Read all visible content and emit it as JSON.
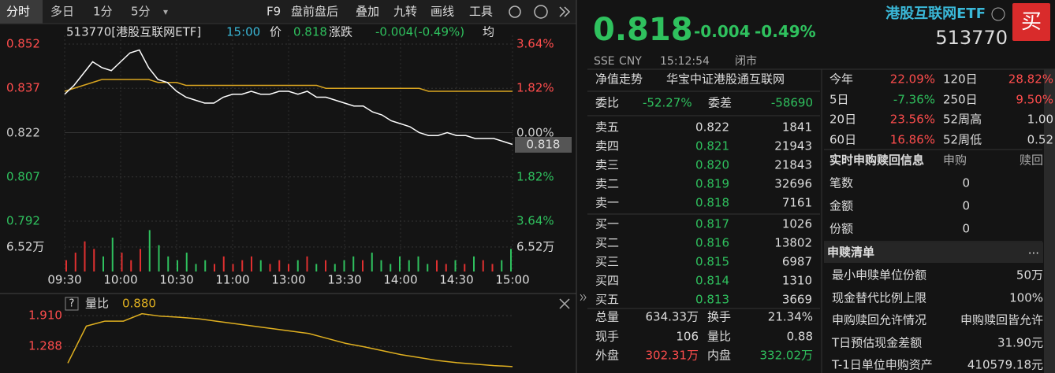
{
  "toolbar": {
    "tabs": [
      "分时",
      "多日",
      "1分",
      "5分"
    ],
    "dropdown": "▾",
    "items": [
      "F9",
      "盘前盘后",
      "叠加",
      "九转",
      "画线",
      "工具"
    ]
  },
  "chart_header": {
    "code_name": "513770[港股互联网ETF]",
    "time": "15:00",
    "price_label": "价",
    "price": "0.818",
    "change_label": "涨跌",
    "change": "-0.004(-0.49%)",
    "avg_label": "均"
  },
  "price_chart": {
    "ylim": [
      0.792,
      0.852
    ],
    "yticks": [
      0.852,
      0.837,
      0.822,
      0.807,
      0.792
    ],
    "pct_ticks": [
      "3.64%",
      "1.82%",
      "0.00%",
      "1.82%",
      "3.64%"
    ],
    "tick_colors": [
      "#ff4d4d",
      "#ff4d4d",
      "#cccccc",
      "#2fc15e",
      "#2fc15e"
    ],
    "last_price": "0.818",
    "time_ticks": [
      "09:30",
      "10:00",
      "10:30",
      "11:00",
      "13:00",
      "13:30",
      "14:00",
      "14:30",
      "15:00"
    ],
    "price_color": "#ffffff",
    "avg_color": "#d9a520",
    "price": [
      0.835,
      0.838,
      0.842,
      0.846,
      0.844,
      0.843,
      0.846,
      0.849,
      0.85,
      0.844,
      0.84,
      0.839,
      0.836,
      0.834,
      0.833,
      0.832,
      0.832,
      0.834,
      0.835,
      0.835,
      0.836,
      0.835,
      0.835,
      0.836,
      0.836,
      0.835,
      0.836,
      0.834,
      0.834,
      0.833,
      0.832,
      0.831,
      0.831,
      0.829,
      0.828,
      0.826,
      0.825,
      0.824,
      0.822,
      0.821,
      0.821,
      0.822,
      0.821,
      0.821,
      0.82,
      0.82,
      0.82,
      0.819,
      0.818
    ],
    "avg": [
      0.836,
      0.837,
      0.838,
      0.839,
      0.84,
      0.84,
      0.84,
      0.84,
      0.84,
      0.84,
      0.839,
      0.839,
      0.839,
      0.838,
      0.838,
      0.838,
      0.838,
      0.838,
      0.838,
      0.838,
      0.838,
      0.838,
      0.838,
      0.838,
      0.838,
      0.838,
      0.838,
      0.838,
      0.837,
      0.837,
      0.837,
      0.837,
      0.837,
      0.837,
      0.837,
      0.837,
      0.837,
      0.837,
      0.837,
      0.836,
      0.836,
      0.836,
      0.836,
      0.836,
      0.836,
      0.836,
      0.836,
      0.836,
      0.836
    ]
  },
  "volume_chart": {
    "ylim": [
      0,
      11.5
    ],
    "tick": {
      "value": 6.52,
      "label": "6.52万"
    },
    "right_tick": "6.52万",
    "up_color": "#e03030",
    "down_color": "#2fc15e",
    "values": [
      3,
      5,
      8,
      6,
      4,
      9,
      5,
      3,
      6,
      11,
      7,
      4,
      3,
      5,
      2,
      3,
      2,
      4,
      2,
      3,
      4,
      3,
      2,
      3,
      2,
      3,
      4,
      2,
      3,
      2,
      3,
      4,
      3,
      5,
      3,
      2,
      4,
      3,
      4,
      2,
      3,
      2,
      3,
      2,
      4,
      3,
      2,
      3,
      6
    ]
  },
  "ratio_chart": {
    "help": "?",
    "title": "量比",
    "value": "0.880",
    "color": "#e0b020",
    "ylim": [
      0.75,
      2.12
    ],
    "yticks": [
      {
        "value": 1.91,
        "label": "1.910"
      },
      1.288
    ],
    "values": [
      0.95,
      1.7,
      1.8,
      1.8,
      1.95,
      1.9,
      1.88,
      1.85,
      1.8,
      1.75,
      1.7,
      1.65,
      1.6,
      1.55,
      1.45,
      1.35,
      1.28,
      1.2,
      1.12,
      1.06,
      1.0,
      0.96,
      0.93,
      0.9,
      0.88
    ]
  },
  "quote": {
    "price": "0.818",
    "change": "-0.004",
    "change_pct": "-0.49%",
    "name": "港股互联网ETF",
    "code": "513770",
    "buy_button": "买",
    "exchange": "SSE",
    "currency": "CNY",
    "time": "15:12:54",
    "status": "闭市"
  },
  "tabs": [
    "净值走势",
    "华宝中证港股通互联网"
  ],
  "order_ratio": [
    "委比",
    "-52.27%",
    "委差",
    "-58690"
  ],
  "asks": {
    "rows": [
      [
        "卖五",
        "0.822",
        "1841"
      ],
      [
        "卖四",
        "0.821",
        "21943"
      ],
      [
        "卖三",
        "0.820",
        "21843"
      ],
      [
        "卖二",
        "0.819",
        "32696"
      ],
      [
        "卖一",
        "0.818",
        "7161"
      ]
    ],
    "colors": [
      "#dddddd",
      "#2fc15e",
      "#2fc15e",
      "#2fc15e",
      "#2fc15e"
    ]
  },
  "bids": {
    "rows": [
      [
        "买一",
        "0.817",
        "1026"
      ],
      [
        "买二",
        "0.816",
        "13802"
      ],
      [
        "买三",
        "0.815",
        "6987"
      ],
      [
        "买四",
        "0.814",
        "1310"
      ],
      [
        "买五",
        "0.813",
        "3669"
      ]
    ],
    "colors": [
      "#2fc15e",
      "#2fc15e",
      "#2fc15e",
      "#2fc15e",
      "#2fc15e"
    ]
  },
  "stats": [
    [
      "总量",
      "634.33万",
      "换手",
      "21.34%"
    ],
    [
      "现手",
      "106",
      "量比",
      "0.88"
    ],
    [
      "外盘",
      "302.31万",
      "内盘",
      "332.02万"
    ]
  ],
  "returns": [
    [
      "今年",
      "22.09%",
      "120日",
      "28.82%"
    ],
    [
      "5日",
      "-7.36%",
      "250日",
      "9.50%"
    ],
    [
      "20日",
      "23.56%",
      "52周高",
      "1.00"
    ],
    [
      "60日",
      "16.86%",
      "52周低",
      "0.52"
    ]
  ],
  "subscription": {
    "title": "实时申购赎回信息",
    "cols": [
      "申购",
      "赎回"
    ],
    "rows": [
      [
        "笔数",
        "0"
      ],
      [
        "金额",
        "0"
      ],
      [
        "份额",
        "0"
      ]
    ]
  },
  "list": {
    "title": "申赎清单",
    "more": "...",
    "rows": [
      [
        "最小申赎单位份额",
        "50万"
      ],
      [
        "现金替代比例上限",
        "100%"
      ],
      [
        "申购赎回允许情况",
        "申购赎回皆允许"
      ],
      [
        "T日预估现金差额",
        "31.90元"
      ],
      [
        "T-1日单位申购资产",
        "410579.18元"
      ]
    ]
  }
}
